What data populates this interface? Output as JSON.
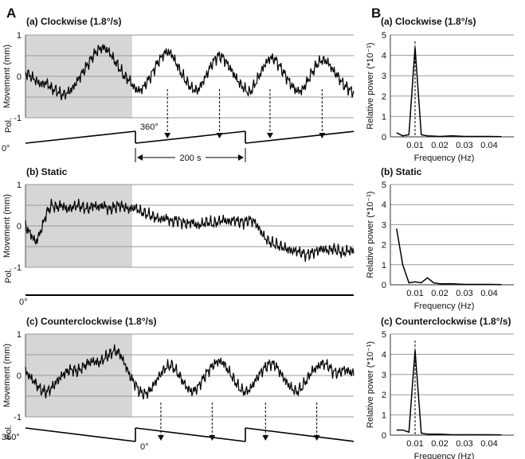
{
  "panel_letters": {
    "a": "A",
    "b": "B"
  },
  "chart_data": [
    {
      "type": "line",
      "title": "(a) Clockwise (1.8°/s)",
      "ylabel": "Movement (mm)",
      "xlabel": "",
      "ylim": [
        -1,
        1
      ],
      "yticks": [
        "1",
        "0",
        "-1"
      ],
      "xlim_s": [
        0,
        800
      ],
      "shaded_x_s": [
        0,
        260
      ],
      "grid": true,
      "series": [
        {
          "values": [
            0.1,
            0.0,
            -0.1,
            -0.2,
            -0.15,
            -0.3,
            -0.35,
            -0.45,
            -0.4,
            -0.3,
            -0.1,
            0.1,
            0.3,
            0.5,
            0.65,
            0.7,
            0.6,
            0.4,
            0.2,
            0.0,
            -0.1,
            -0.3,
            -0.35,
            -0.2,
            0.0,
            0.25,
            0.45,
            0.6,
            0.55,
            0.3,
            0.05,
            -0.15,
            -0.3,
            -0.35,
            -0.15,
            0.1,
            0.35,
            0.5,
            0.45,
            0.25,
            0.05,
            -0.15,
            -0.3,
            -0.4,
            -0.2,
            0.05,
            0.3,
            0.45,
            0.4,
            0.2,
            0.0,
            -0.2,
            -0.35,
            -0.35,
            -0.15,
            0.1,
            0.3,
            0.4,
            0.35,
            0.15,
            0.0,
            -0.2,
            -0.3,
            -0.4
          ]
        }
      ],
      "pol": {
        "label": "Pol.",
        "start": "0°",
        "peak": "360°",
        "period_label": "200 s",
        "direction": "up"
      },
      "arrow_x_s": [
        346,
        473,
        596,
        723
      ]
    },
    {
      "type": "line",
      "title": "(b) Static",
      "ylabel": "Movement (mm)",
      "xlabel": "",
      "ylim": [
        -1,
        1
      ],
      "yticks": [
        "1",
        "0",
        "-1"
      ],
      "xlim_s": [
        0,
        800
      ],
      "shaded_x_s": [
        0,
        260
      ],
      "grid": true,
      "series": [
        {
          "values": [
            0.0,
            -0.2,
            -0.4,
            -0.1,
            0.3,
            0.5,
            0.45,
            0.5,
            0.4,
            0.45,
            0.5,
            0.45,
            0.4,
            0.5,
            0.45,
            0.5,
            0.4,
            0.45,
            0.5,
            0.45,
            0.4,
            0.45,
            0.35,
            0.3,
            0.25,
            0.2,
            0.15,
            0.2,
            0.1,
            0.15,
            0.1,
            0.05,
            0.1,
            0.0,
            0.05,
            0.1,
            0.05,
            0.1,
            0.15,
            0.1,
            0.15,
            0.1,
            0.1,
            0.15,
            0.1,
            -0.1,
            -0.3,
            -0.4,
            -0.45,
            -0.5,
            -0.55,
            -0.6,
            -0.6,
            -0.65,
            -0.7,
            -0.65,
            -0.6,
            -0.55,
            -0.6,
            -0.55,
            -0.6,
            -0.65,
            -0.6,
            -0.6
          ]
        }
      ],
      "pol": {
        "label": "Pol.",
        "start": "0°",
        "direction": "flat"
      }
    },
    {
      "type": "line",
      "title": "(c) Counterclockwise (1.8°/s)",
      "ylabel": "Movement (mm)",
      "xlabel": "",
      "ylim": [
        -1,
        1
      ],
      "yticks": [
        "1",
        "0",
        "-1"
      ],
      "xlim_s": [
        0,
        800
      ],
      "shaded_x_s": [
        0,
        260
      ],
      "grid": true,
      "series": [
        {
          "values": [
            0.1,
            -0.05,
            -0.2,
            -0.35,
            -0.4,
            -0.3,
            -0.15,
            0.0,
            0.1,
            0.15,
            0.1,
            0.2,
            0.3,
            0.35,
            0.3,
            0.4,
            0.5,
            0.6,
            0.55,
            0.3,
            0.0,
            -0.2,
            -0.4,
            -0.45,
            -0.35,
            -0.15,
            0.05,
            0.2,
            0.25,
            0.1,
            -0.1,
            -0.3,
            -0.4,
            -0.3,
            -0.1,
            0.1,
            0.25,
            0.35,
            0.3,
            0.1,
            -0.1,
            -0.3,
            -0.4,
            -0.35,
            -0.15,
            0.05,
            0.2,
            0.3,
            0.25,
            0.05,
            -0.15,
            -0.3,
            -0.4,
            -0.3,
            -0.1,
            0.1,
            0.2,
            0.3,
            0.25,
            0.1,
            0.05,
            0.15,
            0.1,
            0.05
          ]
        }
      ],
      "pol": {
        "label": "Pol.",
        "start": "360°",
        "peak": "0°",
        "direction": "down"
      },
      "arrow_x_s": [
        330,
        455,
        585,
        710
      ]
    },
    {
      "type": "line",
      "title": "(a) Clockwise (1.8°/s)",
      "ylabel": "Relative power (*10⁻¹)",
      "xlabel": "Frequency (Hz)",
      "xlim": [
        0,
        0.05
      ],
      "xticks": [
        "0.01",
        "0.02",
        "0.03",
        "0.04"
      ],
      "ylim": [
        0,
        5
      ],
      "yticks": [
        "0",
        "1",
        "2",
        "3",
        "4",
        "5"
      ],
      "grid": true,
      "peak_marker_x": 0.01,
      "series": [
        {
          "x": [
            0.0025,
            0.005,
            0.0075,
            0.01,
            0.0125,
            0.015,
            0.02,
            0.025,
            0.03,
            0.035,
            0.04,
            0.045
          ],
          "values": [
            0.2,
            0.05,
            0.1,
            4.4,
            0.1,
            0.05,
            0.02,
            0.05,
            0.02,
            0.02,
            0.02,
            0.01
          ]
        }
      ]
    },
    {
      "type": "line",
      "title": "(b) Static",
      "ylabel": "Relative power (*10⁻¹)",
      "xlabel": "Frequency (Hz)",
      "xlim": [
        0,
        0.05
      ],
      "xticks": [
        "0.01",
        "0.02",
        "0.03",
        "0.04"
      ],
      "ylim": [
        0,
        5
      ],
      "yticks": [
        "0",
        "1",
        "2",
        "3",
        "4",
        "5"
      ],
      "grid": true,
      "series": [
        {
          "x": [
            0.0025,
            0.005,
            0.0075,
            0.01,
            0.0125,
            0.015,
            0.0175,
            0.02,
            0.025,
            0.03,
            0.035,
            0.04,
            0.045
          ],
          "values": [
            2.8,
            1.0,
            0.1,
            0.15,
            0.1,
            0.35,
            0.1,
            0.05,
            0.05,
            0.02,
            0.02,
            0.02,
            0.01
          ]
        }
      ]
    },
    {
      "type": "line",
      "title": "(c) Counterclockwise (1.8°/s)",
      "ylabel": "Relative power (*10⁻¹)",
      "xlabel": "Frequency (Hz)",
      "xlim": [
        0,
        0.05
      ],
      "xticks": [
        "0.01",
        "0.02",
        "0.03",
        "0.04"
      ],
      "ylim": [
        0,
        5
      ],
      "yticks": [
        "0",
        "1",
        "2",
        "3",
        "4",
        "5"
      ],
      "grid": true,
      "peak_marker_x": 0.01,
      "series": [
        {
          "x": [
            0.0025,
            0.005,
            0.0075,
            0.01,
            0.0125,
            0.015,
            0.02,
            0.025,
            0.03,
            0.035,
            0.04,
            0.045
          ],
          "values": [
            0.25,
            0.25,
            0.15,
            4.2,
            0.1,
            0.05,
            0.05,
            0.02,
            0.02,
            0.02,
            0.02,
            0.01
          ]
        }
      ]
    }
  ]
}
